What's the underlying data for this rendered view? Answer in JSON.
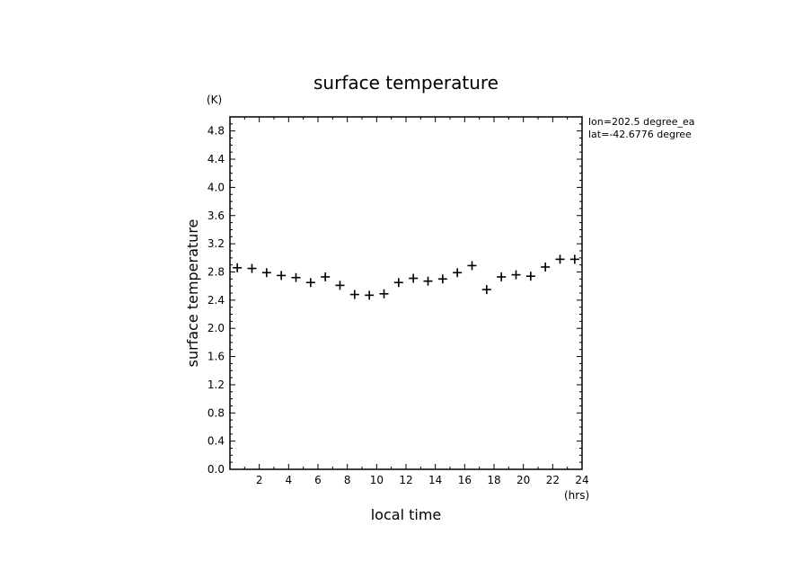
{
  "chart_data": {
    "type": "scatter",
    "title": "surface temperature",
    "xlabel": "local time",
    "ylabel": "surface temperature",
    "x_unit": "(hrs)",
    "y_unit": "(K)",
    "xlim": [
      0,
      24
    ],
    "ylim": [
      0,
      5
    ],
    "x_ticks": [
      2,
      4,
      6,
      8,
      10,
      12,
      14,
      16,
      18,
      20,
      22,
      24
    ],
    "y_ticks": [
      0.0,
      0.4,
      0.8,
      1.2,
      1.6,
      2.0,
      2.4,
      2.8,
      3.2,
      3.6,
      4.0,
      4.4,
      4.8
    ],
    "y_tick_labels": [
      "0.0",
      "0.4",
      "0.8",
      "1.2",
      "1.6",
      "2.0",
      "2.4",
      "2.8",
      "3.2",
      "3.6",
      "4.0",
      "4.4",
      "4.8"
    ],
    "grid": false,
    "marker": "plus",
    "annotations": [
      "lon=202.5 degree_ea",
      "lat=-42.6776 degree"
    ],
    "series": [
      {
        "x": [
          0.5,
          1.5,
          2.5,
          3.5,
          4.5,
          5.5,
          6.5,
          7.5,
          8.5,
          9.5,
          10.5,
          11.5,
          12.5,
          13.5,
          14.5,
          15.5,
          16.5,
          17.5,
          18.5,
          19.5,
          20.5,
          21.5,
          22.5,
          23.5
        ],
        "y": [
          2.86,
          2.85,
          2.79,
          2.75,
          2.72,
          2.65,
          2.73,
          2.61,
          2.48,
          2.47,
          2.49,
          2.65,
          2.71,
          2.67,
          2.7,
          2.79,
          2.89,
          2.55,
          2.73,
          2.76,
          2.74,
          2.87,
          2.98,
          2.98
        ]
      }
    ]
  }
}
